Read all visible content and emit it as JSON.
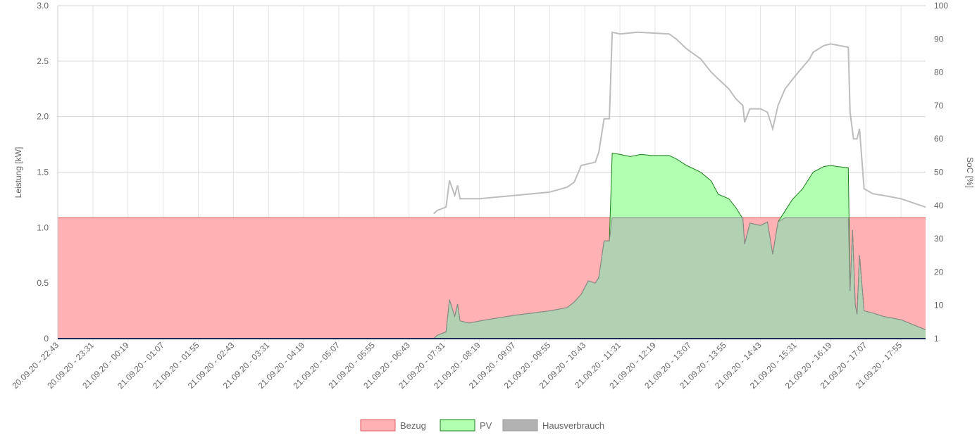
{
  "chart_data": {
    "type": "area",
    "x_labels": [
      "20.09.20 - 22:43",
      "20.09.20 - 23:31",
      "21.09.20 - 00:19",
      "21.09.20 - 01:07",
      "21.09.20 - 01:55",
      "21.09.20 - 02:43",
      "21.09.20 - 03:31",
      "21.09.20 - 04:19",
      "21.09.20 - 05:07",
      "21.09.20 - 05:55",
      "21.09.20 - 06:43",
      "21.09.20 - 07:31",
      "21.09.20 - 08:19",
      "21.09.20 - 09:07",
      "21.09.20 - 09:55",
      "21.09.20 - 10:43",
      "21.09.20 - 11:31",
      "21.09.20 - 12:19",
      "21.09.20 - 13:07",
      "21.09.20 - 13:55",
      "21.09.20 - 14:43",
      "21.09.20 - 15:31",
      "21.09.20 - 16:19",
      "21.09.20 - 17:07",
      "21.09.20 - 17:55"
    ],
    "y_left": {
      "label": "Leistung [kW]",
      "min": 0,
      "max": 3.0,
      "ticks": [
        "0",
        "0.5",
        "1.0",
        "1.5",
        "2.0",
        "2.5",
        "3.0"
      ]
    },
    "y_right": {
      "label": "SoC [%]",
      "ticks": [
        [
          "1",
          1
        ],
        [
          "10",
          10
        ],
        [
          "20",
          20
        ],
        [
          "30",
          30
        ],
        [
          "40",
          40
        ],
        [
          "50",
          50
        ],
        [
          "60",
          60
        ],
        [
          "70",
          70
        ],
        [
          "80",
          80
        ],
        [
          "90",
          90
        ],
        [
          "100",
          100
        ]
      ]
    },
    "x_range_index": [
      0,
      24.7
    ],
    "series": [
      {
        "name": "Bezug",
        "axis": "left",
        "fill": "#ffb1b4",
        "stroke": "#e05a5f",
        "points": [
          [
            0,
            1.09
          ],
          [
            24.7,
            1.09
          ]
        ]
      },
      {
        "name": "PV",
        "axis": "left",
        "fill": "#b1ffb1",
        "stroke": "#1a7f1a",
        "points": [
          [
            0,
            0
          ],
          [
            10.7,
            0
          ],
          [
            10.8,
            0.03
          ],
          [
            11.05,
            0.06
          ],
          [
            11.15,
            0.35
          ],
          [
            11.3,
            0.2
          ],
          [
            11.38,
            0.31
          ],
          [
            11.45,
            0.16
          ],
          [
            11.7,
            0.14
          ],
          [
            12.2,
            0.17
          ],
          [
            13.0,
            0.21
          ],
          [
            13.5,
            0.23
          ],
          [
            14.0,
            0.25
          ],
          [
            14.5,
            0.28
          ],
          [
            14.7,
            0.33
          ],
          [
            14.9,
            0.4
          ],
          [
            15.1,
            0.52
          ],
          [
            15.3,
            0.5
          ],
          [
            15.4,
            0.55
          ],
          [
            15.55,
            0.88
          ],
          [
            15.7,
            0.88
          ],
          [
            15.78,
            1.67
          ],
          [
            16.0,
            1.66
          ],
          [
            16.3,
            1.64
          ],
          [
            16.6,
            1.66
          ],
          [
            16.9,
            1.65
          ],
          [
            17.4,
            1.65
          ],
          [
            17.6,
            1.62
          ],
          [
            17.9,
            1.56
          ],
          [
            18.3,
            1.5
          ],
          [
            18.6,
            1.42
          ],
          [
            18.8,
            1.3
          ],
          [
            19.1,
            1.26
          ],
          [
            19.3,
            1.18
          ],
          [
            19.5,
            1.08
          ],
          [
            19.55,
            0.85
          ],
          [
            19.7,
            1.04
          ],
          [
            20.0,
            1.02
          ],
          [
            20.2,
            1.05
          ],
          [
            20.35,
            0.76
          ],
          [
            20.5,
            1.05
          ],
          [
            20.7,
            1.15
          ],
          [
            20.9,
            1.25
          ],
          [
            21.2,
            1.35
          ],
          [
            21.4,
            1.45
          ],
          [
            21.5,
            1.5
          ],
          [
            21.8,
            1.55
          ],
          [
            22.0,
            1.56
          ],
          [
            22.2,
            1.55
          ],
          [
            22.5,
            1.54
          ],
          [
            22.55,
            0.43
          ],
          [
            22.62,
            0.98
          ],
          [
            22.7,
            0.3
          ],
          [
            22.75,
            0.22
          ],
          [
            22.82,
            0.75
          ],
          [
            22.95,
            0.25
          ],
          [
            23.2,
            0.23
          ],
          [
            23.5,
            0.2
          ],
          [
            24.0,
            0.17
          ],
          [
            24.7,
            0.08
          ]
        ]
      },
      {
        "name": "Hausverbrauch",
        "axis": "left",
        "fill": "#b2b2b2",
        "stroke": "#8a8a8a",
        "points": [
          [
            0,
            0
          ],
          [
            10.7,
            0
          ],
          [
            10.8,
            0.03
          ],
          [
            11.05,
            0.06
          ],
          [
            11.15,
            0.35
          ],
          [
            11.3,
            0.2
          ],
          [
            11.38,
            0.31
          ],
          [
            11.45,
            0.16
          ],
          [
            11.7,
            0.14
          ],
          [
            12.2,
            0.17
          ],
          [
            13.0,
            0.21
          ],
          [
            13.5,
            0.23
          ],
          [
            14.0,
            0.25
          ],
          [
            14.5,
            0.28
          ],
          [
            14.7,
            0.33
          ],
          [
            14.9,
            0.4
          ],
          [
            15.1,
            0.52
          ],
          [
            15.3,
            0.5
          ],
          [
            15.4,
            0.55
          ],
          [
            15.55,
            0.88
          ],
          [
            15.7,
            0.88
          ],
          [
            15.78,
            1.09
          ],
          [
            19.5,
            1.09
          ],
          [
            19.55,
            0.85
          ],
          [
            19.7,
            1.04
          ],
          [
            20.0,
            1.02
          ],
          [
            20.2,
            1.05
          ],
          [
            20.35,
            0.76
          ],
          [
            20.5,
            1.05
          ],
          [
            20.7,
            1.09
          ],
          [
            22.5,
            1.09
          ],
          [
            22.55,
            0.43
          ],
          [
            22.62,
            0.98
          ],
          [
            22.7,
            0.3
          ],
          [
            22.75,
            0.22
          ],
          [
            22.82,
            0.75
          ],
          [
            22.95,
            0.25
          ],
          [
            23.2,
            0.23
          ],
          [
            23.5,
            0.2
          ],
          [
            24.0,
            0.17
          ],
          [
            24.7,
            0.08
          ]
        ]
      },
      {
        "name": "SoC",
        "axis": "right",
        "fill": "none",
        "stroke": "#bdbdbd",
        "points": [
          [
            10.7,
            37.5
          ],
          [
            10.8,
            38.5
          ],
          [
            11.05,
            39.5
          ],
          [
            11.15,
            47.5
          ],
          [
            11.3,
            43
          ],
          [
            11.38,
            46
          ],
          [
            11.45,
            42
          ],
          [
            12.0,
            42
          ],
          [
            13.0,
            43
          ],
          [
            14.0,
            44
          ],
          [
            14.5,
            45.5
          ],
          [
            14.7,
            47
          ],
          [
            14.9,
            52
          ],
          [
            15.3,
            53
          ],
          [
            15.4,
            56
          ],
          [
            15.55,
            66
          ],
          [
            15.7,
            66
          ],
          [
            15.78,
            92
          ],
          [
            16.0,
            91.5
          ],
          [
            16.5,
            92
          ],
          [
            17.4,
            91.5
          ],
          [
            17.6,
            90
          ],
          [
            17.9,
            87
          ],
          [
            18.3,
            84
          ],
          [
            18.6,
            80
          ],
          [
            18.8,
            78
          ],
          [
            19.1,
            75
          ],
          [
            19.3,
            72
          ],
          [
            19.5,
            70
          ],
          [
            19.55,
            65
          ],
          [
            19.7,
            69
          ],
          [
            20.0,
            69
          ],
          [
            20.2,
            68
          ],
          [
            20.35,
            63
          ],
          [
            20.5,
            70
          ],
          [
            20.7,
            75
          ],
          [
            21.0,
            79
          ],
          [
            21.4,
            84
          ],
          [
            21.5,
            86
          ],
          [
            21.8,
            88
          ],
          [
            22.0,
            88.5
          ],
          [
            22.5,
            87.5
          ],
          [
            22.55,
            68
          ],
          [
            22.65,
            60
          ],
          [
            22.75,
            60
          ],
          [
            22.82,
            63
          ],
          [
            22.95,
            45
          ],
          [
            23.2,
            43.5
          ],
          [
            23.5,
            43
          ],
          [
            24.0,
            42
          ],
          [
            24.7,
            39.5
          ]
        ]
      }
    ],
    "legend": [
      {
        "name": "Bezug",
        "fill": "#ffb1b4",
        "stroke": "#e05a5f"
      },
      {
        "name": "PV",
        "fill": "#b1ffb1",
        "stroke": "#1a7f1a"
      },
      {
        "name": "Hausverbrauch",
        "fill": "#b2b2b2",
        "stroke": "#9a9a9a"
      }
    ],
    "grid": true,
    "legend_position": "bottom-center"
  }
}
